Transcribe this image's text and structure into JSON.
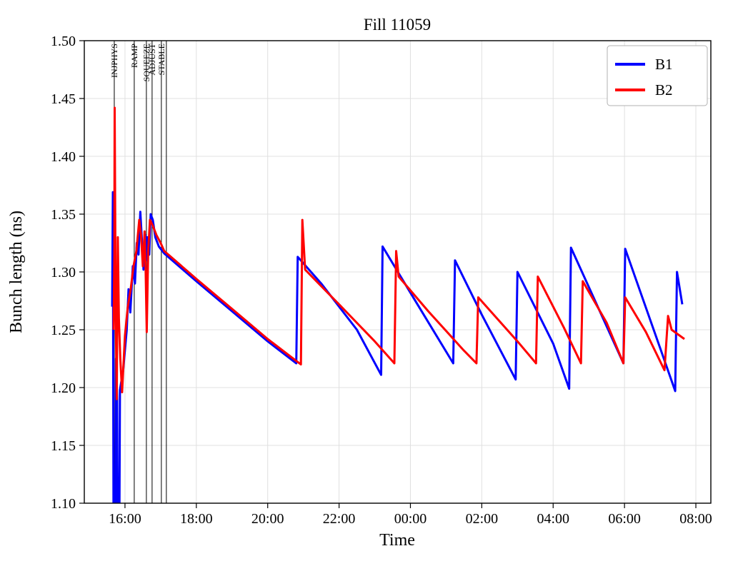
{
  "chart_data": {
    "type": "line",
    "title": "Fill 11059",
    "xlabel": "Time",
    "ylabel": "Bunch length (ns)",
    "xlim": [
      14.86,
      32.42
    ],
    "ylim": [
      1.1,
      1.5
    ],
    "grid": true,
    "legend_position": "upper right",
    "x_ticks": [
      {
        "t": 16,
        "label": "16:00"
      },
      {
        "t": 18,
        "label": "18:00"
      },
      {
        "t": 20,
        "label": "20:00"
      },
      {
        "t": 22,
        "label": "22:00"
      },
      {
        "t": 24,
        "label": "00:00"
      },
      {
        "t": 26,
        "label": "02:00"
      },
      {
        "t": 28,
        "label": "04:00"
      },
      {
        "t": 30,
        "label": "06:00"
      },
      {
        "t": 32,
        "label": "08:00"
      }
    ],
    "y_ticks": [
      {
        "v": 1.1,
        "label": "1.10"
      },
      {
        "v": 1.15,
        "label": "1.15"
      },
      {
        "v": 1.2,
        "label": "1.20"
      },
      {
        "v": 1.25,
        "label": "1.25"
      },
      {
        "v": 1.3,
        "label": "1.30"
      },
      {
        "v": 1.35,
        "label": "1.35"
      },
      {
        "v": 1.4,
        "label": "1.40"
      },
      {
        "v": 1.45,
        "label": "1.45"
      },
      {
        "v": 1.5,
        "label": "1.50"
      }
    ],
    "beam_mode_markers": [
      {
        "t": 15.7,
        "label": "INJPHYS"
      },
      {
        "t": 16.26,
        "label": "RAMP"
      },
      {
        "t": 16.6,
        "label": "SQUEEZE"
      },
      {
        "t": 16.76,
        "label": "ADJUST"
      },
      {
        "t": 17.02,
        "label": "STABLE"
      },
      {
        "t": 17.16,
        "label": ""
      }
    ],
    "series": [
      {
        "name": "B1",
        "color": "#0000ff",
        "points": [
          [
            15.64,
            1.27
          ],
          [
            15.66,
            1.369
          ],
          [
            15.68,
            1.05
          ],
          [
            15.73,
            1.05
          ],
          [
            15.75,
            1.225
          ],
          [
            15.78,
            1.19
          ],
          [
            15.8,
            1.05
          ],
          [
            15.84,
            1.05
          ],
          [
            15.86,
            1.198
          ],
          [
            15.95,
            1.215
          ],
          [
            16.05,
            1.25
          ],
          [
            16.1,
            1.285
          ],
          [
            16.15,
            1.265
          ],
          [
            16.22,
            1.305
          ],
          [
            16.28,
            1.29
          ],
          [
            16.33,
            1.325
          ],
          [
            16.38,
            1.315
          ],
          [
            16.43,
            1.352
          ],
          [
            16.47,
            1.33
          ],
          [
            16.52,
            1.302
          ],
          [
            16.57,
            1.332
          ],
          [
            16.6,
            1.31
          ],
          [
            16.63,
            1.33
          ],
          [
            16.68,
            1.315
          ],
          [
            16.72,
            1.35
          ],
          [
            16.78,
            1.345
          ],
          [
            16.85,
            1.33
          ],
          [
            16.95,
            1.322
          ],
          [
            17.1,
            1.316
          ],
          [
            18.0,
            1.292
          ],
          [
            19.0,
            1.266
          ],
          [
            20.0,
            1.24
          ],
          [
            20.8,
            1.221
          ],
          [
            20.84,
            1.313
          ],
          [
            21.5,
            1.29
          ],
          [
            22.5,
            1.25
          ],
          [
            23.18,
            1.211
          ],
          [
            23.22,
            1.322
          ],
          [
            24.0,
            1.282
          ],
          [
            25.2,
            1.221
          ],
          [
            25.25,
            1.31
          ],
          [
            26.0,
            1.263
          ],
          [
            26.95,
            1.207
          ],
          [
            27.0,
            1.3
          ],
          [
            28.0,
            1.238
          ],
          [
            28.45,
            1.199
          ],
          [
            28.5,
            1.321
          ],
          [
            29.0,
            1.287
          ],
          [
            29.97,
            1.221
          ],
          [
            30.02,
            1.32
          ],
          [
            31.0,
            1.234
          ],
          [
            31.42,
            1.197
          ],
          [
            31.47,
            1.3
          ],
          [
            31.62,
            1.272
          ]
        ]
      },
      {
        "name": "B2",
        "color": "#ff0000",
        "points": [
          [
            15.68,
            1.25
          ],
          [
            15.7,
            1.315
          ],
          [
            15.71,
            1.442
          ],
          [
            15.74,
            1.27
          ],
          [
            15.77,
            1.19
          ],
          [
            15.8,
            1.33
          ],
          [
            15.83,
            1.26
          ],
          [
            15.87,
            1.225
          ],
          [
            15.92,
            1.196
          ],
          [
            16.0,
            1.245
          ],
          [
            16.08,
            1.27
          ],
          [
            16.16,
            1.285
          ],
          [
            16.24,
            1.305
          ],
          [
            16.32,
            1.318
          ],
          [
            16.4,
            1.345
          ],
          [
            16.45,
            1.332
          ],
          [
            16.5,
            1.305
          ],
          [
            16.55,
            1.335
          ],
          [
            16.58,
            1.3
          ],
          [
            16.61,
            1.248
          ],
          [
            16.65,
            1.318
          ],
          [
            16.7,
            1.345
          ],
          [
            16.78,
            1.34
          ],
          [
            16.88,
            1.332
          ],
          [
            17.0,
            1.325
          ],
          [
            17.1,
            1.318
          ],
          [
            18.0,
            1.294
          ],
          [
            19.0,
            1.268
          ],
          [
            20.0,
            1.242
          ],
          [
            20.93,
            1.22
          ],
          [
            20.97,
            1.345
          ],
          [
            21.05,
            1.302
          ],
          [
            22.0,
            1.272
          ],
          [
            23.0,
            1.24
          ],
          [
            23.55,
            1.221
          ],
          [
            23.6,
            1.318
          ],
          [
            23.67,
            1.296
          ],
          [
            24.5,
            1.266
          ],
          [
            25.5,
            1.232
          ],
          [
            25.85,
            1.221
          ],
          [
            25.9,
            1.278
          ],
          [
            27.0,
            1.24
          ],
          [
            27.52,
            1.221
          ],
          [
            27.57,
            1.296
          ],
          [
            28.3,
            1.252
          ],
          [
            28.78,
            1.221
          ],
          [
            28.83,
            1.292
          ],
          [
            29.5,
            1.256
          ],
          [
            29.97,
            1.221
          ],
          [
            30.02,
            1.278
          ],
          [
            30.6,
            1.248
          ],
          [
            31.12,
            1.215
          ],
          [
            31.22,
            1.262
          ],
          [
            31.32,
            1.25
          ],
          [
            31.68,
            1.242
          ]
        ]
      }
    ]
  }
}
